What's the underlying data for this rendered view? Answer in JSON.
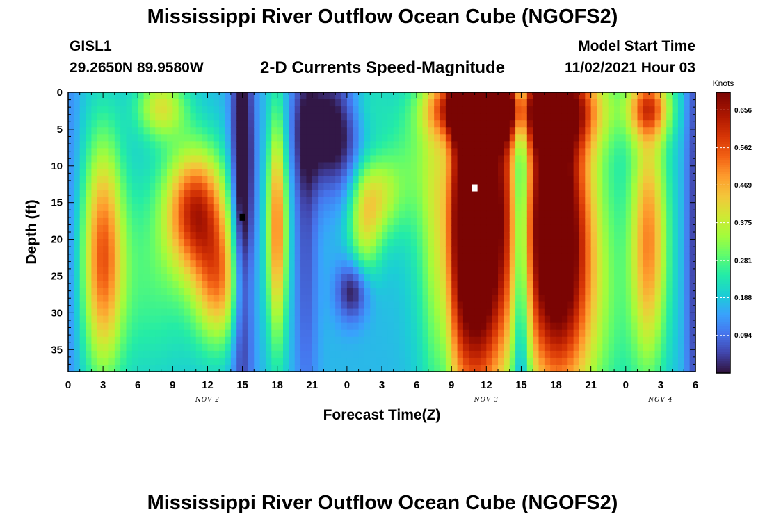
{
  "header": {
    "title": "Mississippi River Outflow Ocean Cube (NGOFS2)",
    "station": "GISL1",
    "coordinates": "29.2650N  89.9580W",
    "subtitle": "2-D Currents Speed-Magnitude",
    "model_start_label": "Model Start Time",
    "model_start_time": "11/02/2021 Hour 03"
  },
  "footer": {
    "title": "Mississippi River Outflow Ocean Cube (NGOFS2)"
  },
  "chart_data": {
    "type": "heatmap",
    "xlabel": "Forecast Time(Z)",
    "ylabel": "Depth (ft)",
    "x_tick_labels": [
      "0",
      "3",
      "6",
      "9",
      "12",
      "15",
      "18",
      "21",
      "0",
      "3",
      "6",
      "9",
      "12",
      "15",
      "18",
      "21",
      "0",
      "3",
      "6"
    ],
    "x_range_hours": [
      0,
      54
    ],
    "date_labels": [
      {
        "text": "NOV 2",
        "hour": 12
      },
      {
        "text": "NOV 3",
        "hour": 36
      },
      {
        "text": "NOV 4",
        "hour": 51
      }
    ],
    "y_tick_labels": [
      "0",
      "5",
      "10",
      "15",
      "20",
      "25",
      "30",
      "35"
    ],
    "y_range": [
      0,
      38
    ],
    "y_inverted": true,
    "colorbar": {
      "unit": "Knots",
      "range": [
        0,
        0.7
      ],
      "tick_values": [
        0.656,
        0.562,
        0.469,
        0.375,
        0.281,
        0.188,
        0.094
      ],
      "tick_labels": [
        "0.656",
        "0.562",
        "0.469",
        "0.375",
        "0.281",
        "0.188",
        "0.094"
      ]
    },
    "markers": [
      {
        "label": "min",
        "hour": 15,
        "depth": 17,
        "color": "#000000"
      },
      {
        "label": "max",
        "hour": 35,
        "depth": 13,
        "color": "#ffffff"
      }
    ]
  }
}
